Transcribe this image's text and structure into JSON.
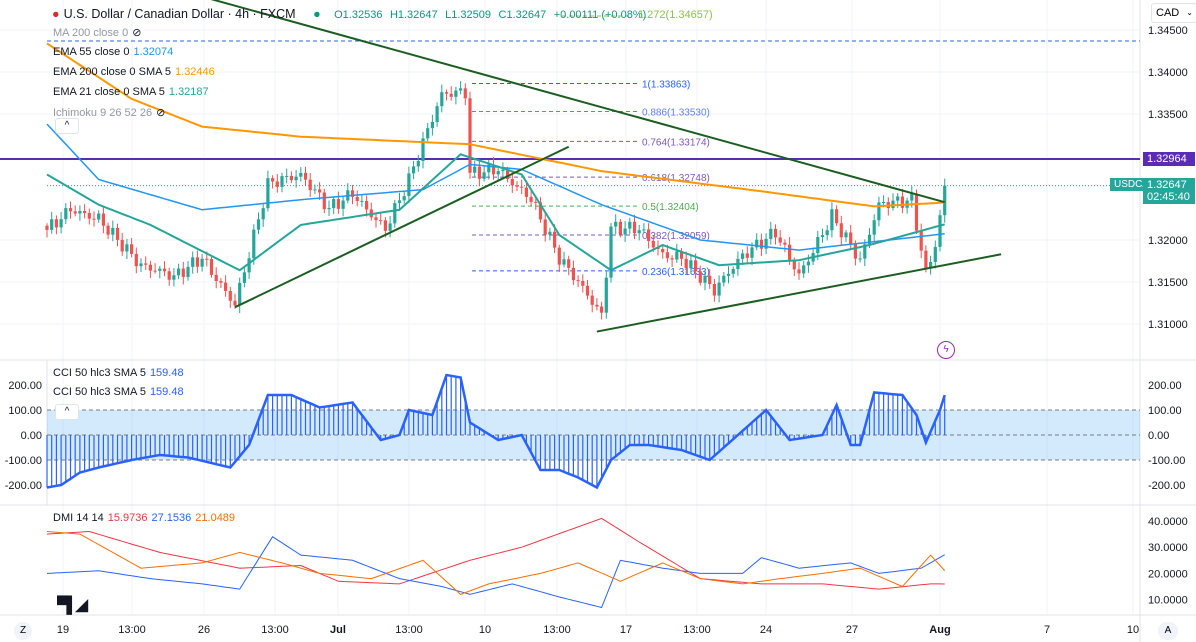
{
  "header": {
    "title": "U.S. Dollar / Canadian Dollar · 4h · FXCM",
    "open": "O1.32536",
    "high": "H1.32647",
    "low": "L1.32509",
    "close": "C1.32647",
    "change": "+0.00111 (+0.08%)",
    "fib_ext": "1.272(1.34657)"
  },
  "legend": [
    {
      "label": "MA 200 close 0",
      "value": "",
      "color": "#9598a1",
      "hidden": true
    },
    {
      "label": "EMA 55 close 0",
      "value": "1.32074",
      "color": "#2196f3"
    },
    {
      "label": "EMA 200 close 0 SMA 5",
      "value": "1.32446",
      "color": "#ff9800"
    },
    {
      "label": "EMA 21 close 0 SMA 5",
      "value": "1.32187",
      "color": "#26a69a"
    },
    {
      "label": "Ichimoku 9 26 52 26",
      "value": "",
      "color": "#9598a1",
      "hidden": true
    }
  ],
  "cci_legend": [
    {
      "label": "CCI 50 hlc3 SMA 5",
      "value": "159.48"
    },
    {
      "label": "CCI 50 hlc3 SMA 5",
      "value": "159.48"
    }
  ],
  "dmi_legend": {
    "label": "DMI 14 14",
    "adx": "15.9736",
    "plus": "27.1536",
    "minus": "21.0489"
  },
  "currency": "CAD",
  "symbol_tag": "USDCAD",
  "price_tag": "1.32647",
  "countdown": "02:45:40",
  "level_tag": "1.32964",
  "buttons": {
    "z": "Z",
    "a": "A",
    "collapse": "^"
  },
  "colors": {
    "up": "#26a69a",
    "down": "#ef5350",
    "ema200": "#ff9800",
    "ema55": "#2196f3",
    "ema21": "#26a69a",
    "trend": "#1b5e20",
    "level": "#5b2bb5",
    "cci": "#2962ff",
    "adx": "#f23645",
    "plus_di": "#2962ff",
    "minus_di": "#ff6d00"
  },
  "chart_data": {
    "type": "candlestick",
    "title": "U.S. Dollar / Canadian Dollar · 4h · FXCM",
    "price_axis": {
      "ticks": [
        "1.34500",
        "1.34000",
        "1.33500",
        "1.32000",
        "1.31500",
        "1.31000"
      ],
      "values": [
        1.345,
        1.34,
        1.335,
        1.32,
        1.315,
        1.31
      ]
    },
    "time_axis": [
      "19",
      "13:00",
      "26",
      "13:00",
      "Jul",
      "13:00",
      "10",
      "13:00",
      "17",
      "13:00",
      "24",
      "27",
      "Aug",
      "7",
      "10"
    ],
    "candle_count": 192,
    "price_path": [
      [
        0,
        1.3212
      ],
      [
        5,
        1.3242
      ],
      [
        11,
        1.323
      ],
      [
        20,
        1.3164
      ],
      [
        27,
        1.3152
      ],
      [
        33,
        1.3182
      ],
      [
        40,
        1.3129
      ],
      [
        47,
        1.3265
      ],
      [
        54,
        1.3271
      ],
      [
        60,
        1.3236
      ],
      [
        65,
        1.326
      ],
      [
        72,
        1.3218
      ],
      [
        77,
        1.3271
      ],
      [
        84,
        1.3367
      ],
      [
        89,
        1.3373
      ],
      [
        90,
        1.3277
      ],
      [
        96,
        1.3289
      ],
      [
        103,
        1.3254
      ],
      [
        109,
        1.3176
      ],
      [
        118,
        1.3105
      ],
      [
        120,
        1.3212
      ],
      [
        126,
        1.3218
      ],
      [
        131,
        1.3188
      ],
      [
        135,
        1.3182
      ],
      [
        142,
        1.3135
      ],
      [
        148,
        1.3176
      ],
      [
        155,
        1.3212
      ],
      [
        160,
        1.3164
      ],
      [
        167,
        1.323
      ],
      [
        173,
        1.317
      ],
      [
        177,
        1.3236
      ],
      [
        184,
        1.3248
      ],
      [
        187,
        1.3164
      ],
      [
        189,
        1.32
      ],
      [
        191,
        1.32647
      ]
    ],
    "ema200": [
      [
        0,
        1.3434
      ],
      [
        18,
        1.3368
      ],
      [
        33,
        1.3335
      ],
      [
        54,
        1.3323
      ],
      [
        90,
        1.3314
      ],
      [
        118,
        1.3282
      ],
      [
        152,
        1.3258
      ],
      [
        176,
        1.324
      ],
      [
        191,
        1.32446
      ]
    ],
    "ema55": [
      [
        0,
        1.3338
      ],
      [
        11,
        1.3272
      ],
      [
        33,
        1.3236
      ],
      [
        54,
        1.3248
      ],
      [
        80,
        1.326
      ],
      [
        90,
        1.329
      ],
      [
        101,
        1.3284
      ],
      [
        118,
        1.3242
      ],
      [
        139,
        1.32
      ],
      [
        160,
        1.3188
      ],
      [
        191,
        1.32074
      ]
    ],
    "ema21": [
      [
        0,
        1.3278
      ],
      [
        11,
        1.3242
      ],
      [
        22,
        1.3218
      ],
      [
        41,
        1.3164
      ],
      [
        54,
        1.3218
      ],
      [
        75,
        1.3236
      ],
      [
        88,
        1.3302
      ],
      [
        101,
        1.3278
      ],
      [
        109,
        1.3206
      ],
      [
        120,
        1.3164
      ],
      [
        131,
        1.3194
      ],
      [
        143,
        1.317
      ],
      [
        160,
        1.3176
      ],
      [
        175,
        1.3194
      ],
      [
        191,
        1.32187
      ]
    ],
    "trendlines": [
      [
        [
          18,
          1.3513
        ],
        [
          191,
          1.3245
        ]
      ],
      [
        [
          40,
          1.312
        ],
        [
          111,
          1.3311
        ]
      ],
      [
        [
          117,
          1.3091
        ],
        [
          203,
          1.3183
        ]
      ]
    ],
    "horizontal_level": 1.32964,
    "fib_levels": [
      {
        "label": "1(1.33863)",
        "value": 1.33863,
        "color": "#2962ff"
      },
      {
        "label": "0.886(1.33530)",
        "value": 1.3353,
        "color": "#5b7fff"
      },
      {
        "label": "0.764(1.33174)",
        "value": 1.33174,
        "color": "#7e57c2"
      },
      {
        "label": "0.618(1.32748)",
        "value": 1.32748,
        "color": "#7e57c2"
      },
      {
        "label": "0.5(1.32404)",
        "value": 1.32404,
        "color": "#4caf50"
      },
      {
        "label": "0.382(1.32059)",
        "value": 1.32059,
        "color": "#7e57c2"
      },
      {
        "label": "0.236(1.31633)",
        "value": 1.31633,
        "color": "#2962ff"
      }
    ],
    "cci": {
      "ticks": [
        "200.00",
        "100.00",
        "0.00",
        "-100.00",
        "-200.00"
      ],
      "values": [
        [
          0,
          -210
        ],
        [
          3,
          -200
        ],
        [
          7,
          -150
        ],
        [
          11,
          -130
        ],
        [
          18,
          -100
        ],
        [
          24,
          -80
        ],
        [
          30,
          -90
        ],
        [
          39,
          -130
        ],
        [
          43,
          -40
        ],
        [
          47,
          160
        ],
        [
          52,
          160
        ],
        [
          58,
          110
        ],
        [
          65,
          130
        ],
        [
          71,
          -20
        ],
        [
          75,
          0
        ],
        [
          77,
          100
        ],
        [
          82,
          80
        ],
        [
          85,
          240
        ],
        [
          88,
          230
        ],
        [
          90,
          50
        ],
        [
          96,
          -20
        ],
        [
          101,
          0
        ],
        [
          105,
          -140
        ],
        [
          109,
          -140
        ],
        [
          113,
          -170
        ],
        [
          117,
          -210
        ],
        [
          120,
          -100
        ],
        [
          124,
          -40
        ],
        [
          128,
          -40
        ],
        [
          135,
          -60
        ],
        [
          141,
          -100
        ],
        [
          147,
          0
        ],
        [
          153,
          100
        ],
        [
          158,
          -20
        ],
        [
          165,
          0
        ],
        [
          168,
          120
        ],
        [
          171,
          -40
        ],
        [
          173,
          -40
        ],
        [
          176,
          170
        ],
        [
          182,
          160
        ],
        [
          185,
          80
        ],
        [
          187,
          -30
        ],
        [
          190,
          100
        ],
        [
          191,
          159.48
        ]
      ]
    },
    "dmi": {
      "ticks": [
        "40.0000",
        "30.0000",
        "20.0000",
        "10.0000"
      ],
      "adx": [
        [
          0,
          35
        ],
        [
          9,
          36
        ],
        [
          24,
          28
        ],
        [
          41,
          22
        ],
        [
          54,
          23
        ],
        [
          62,
          17
        ],
        [
          75,
          16
        ],
        [
          90,
          25
        ],
        [
          101,
          30
        ],
        [
          118,
          41
        ],
        [
          126,
          32
        ],
        [
          139,
          18
        ],
        [
          152,
          16
        ],
        [
          165,
          16
        ],
        [
          177,
          14
        ],
        [
          188,
          16
        ],
        [
          191,
          15.97
        ]
      ],
      "plus_di": [
        [
          0,
          20
        ],
        [
          11,
          21
        ],
        [
          22,
          18
        ],
        [
          33,
          16
        ],
        [
          41,
          14
        ],
        [
          48,
          34
        ],
        [
          54,
          27
        ],
        [
          65,
          25
        ],
        [
          75,
          18
        ],
        [
          84,
          15
        ],
        [
          90,
          12
        ],
        [
          99,
          16
        ],
        [
          109,
          11
        ],
        [
          118,
          7
        ],
        [
          122,
          25
        ],
        [
          131,
          22
        ],
        [
          139,
          20
        ],
        [
          148,
          20
        ],
        [
          152,
          26
        ],
        [
          160,
          22
        ],
        [
          171,
          24
        ],
        [
          177,
          20
        ],
        [
          186,
          22
        ],
        [
          191,
          27.15
        ]
      ],
      "minus_di": [
        [
          0,
          36
        ],
        [
          7,
          35
        ],
        [
          20,
          22
        ],
        [
          33,
          24
        ],
        [
          41,
          28
        ],
        [
          50,
          24
        ],
        [
          58,
          20
        ],
        [
          69,
          18
        ],
        [
          80,
          25
        ],
        [
          88,
          12
        ],
        [
          94,
          16
        ],
        [
          105,
          20
        ],
        [
          113,
          24
        ],
        [
          122,
          17
        ],
        [
          131,
          24
        ],
        [
          139,
          18
        ],
        [
          148,
          16
        ],
        [
          156,
          18
        ],
        [
          165,
          20
        ],
        [
          173,
          22
        ],
        [
          182,
          15
        ],
        [
          188,
          27
        ],
        [
          191,
          21.05
        ]
      ]
    }
  }
}
